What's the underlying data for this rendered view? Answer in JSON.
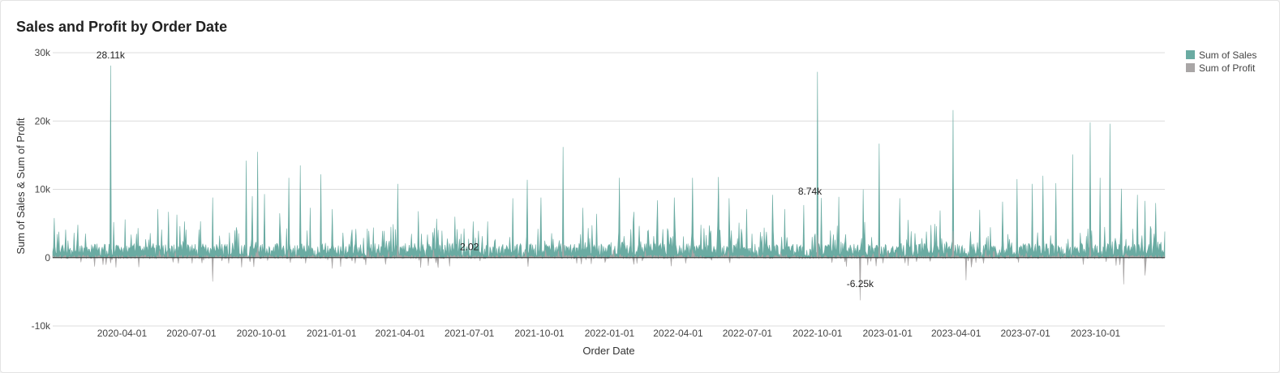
{
  "chart_data": {
    "type": "area",
    "title": "Sales and Profit by Order Date",
    "xlabel": "Order Date",
    "ylabel": "Sum of Sales & Sum of Profit",
    "ylim": [
      -10000,
      30000
    ],
    "xlim": [
      "2020-01-01",
      "2023-12-31"
    ],
    "grid": true,
    "legend_position": "top-right",
    "y_ticks": [
      {
        "value": -10000,
        "label": "-10k"
      },
      {
        "value": 0,
        "label": "0"
      },
      {
        "value": 10000,
        "label": "10k"
      },
      {
        "value": 20000,
        "label": "20k"
      },
      {
        "value": 30000,
        "label": "30k"
      }
    ],
    "x_ticks": [
      "2020-04-01",
      "2020-07-01",
      "2020-10-01",
      "2021-01-01",
      "2021-04-01",
      "2021-07-01",
      "2021-10-01",
      "2022-01-01",
      "2022-04-01",
      "2022-07-01",
      "2022-10-01",
      "2023-01-01",
      "2023-04-01",
      "2023-07-01",
      "2023-10-01"
    ],
    "series": [
      {
        "name": "Sum of Sales",
        "color": "#6aaba2",
        "peaks": [
          [
            "2020-01-03",
            5800
          ],
          [
            "2020-01-09",
            3800
          ],
          [
            "2020-01-18",
            4100
          ],
          [
            "2020-02-02",
            2600
          ],
          [
            "2020-02-21",
            1900
          ],
          [
            "2020-03-17",
            28110
          ],
          [
            "2020-03-21",
            5200
          ],
          [
            "2020-04-05",
            5600
          ],
          [
            "2020-05-02",
            2700
          ],
          [
            "2020-05-18",
            7100
          ],
          [
            "2020-06-01",
            6700
          ],
          [
            "2020-06-12",
            6300
          ],
          [
            "2020-06-22",
            5300
          ],
          [
            "2020-07-29",
            8800
          ],
          [
            "2020-09-11",
            14200
          ],
          [
            "2020-09-19",
            9000
          ],
          [
            "2020-09-26",
            15500
          ],
          [
            "2020-10-05",
            9300
          ],
          [
            "2020-10-25",
            6500
          ],
          [
            "2020-11-06",
            11700
          ],
          [
            "2020-11-21",
            13500
          ],
          [
            "2020-12-04",
            7300
          ],
          [
            "2020-12-18",
            12200
          ],
          [
            "2021-01-02",
            7100
          ],
          [
            "2021-02-02",
            4200
          ],
          [
            "2021-03-29",
            10800
          ],
          [
            "2021-04-25",
            6800
          ],
          [
            "2021-05-19",
            5700
          ],
          [
            "2021-06-12",
            6000
          ],
          [
            "2021-07-06",
            5300
          ],
          [
            "2021-08-27",
            8700
          ],
          [
            "2021-09-15",
            11400
          ],
          [
            "2021-10-03",
            8800
          ],
          [
            "2021-11-01",
            16200
          ],
          [
            "2021-11-27",
            7300
          ],
          [
            "2021-12-15",
            6400
          ],
          [
            "2022-01-14",
            11700
          ],
          [
            "2022-02-02",
            6700
          ],
          [
            "2022-03-05",
            8400
          ],
          [
            "2022-03-27",
            8800
          ],
          [
            "2022-04-20",
            11700
          ],
          [
            "2022-05-24",
            11800
          ],
          [
            "2022-06-07",
            8700
          ],
          [
            "2022-06-30",
            7100
          ],
          [
            "2022-08-03",
            9200
          ],
          [
            "2022-08-19",
            7100
          ],
          [
            "2022-09-13",
            7700
          ],
          [
            "2022-10-01",
            27200
          ],
          [
            "2022-10-06",
            8740
          ],
          [
            "2022-10-29",
            8900
          ],
          [
            "2022-11-30",
            10000
          ],
          [
            "2022-12-21",
            16700
          ],
          [
            "2023-01-17",
            8700
          ],
          [
            "2023-03-11",
            6900
          ],
          [
            "2023-03-28",
            21600
          ],
          [
            "2023-05-02",
            7000
          ],
          [
            "2023-06-01",
            8200
          ],
          [
            "2023-06-20",
            11500
          ],
          [
            "2023-07-10",
            10800
          ],
          [
            "2023-07-24",
            12000
          ],
          [
            "2023-08-10",
            10900
          ],
          [
            "2023-09-01",
            15100
          ],
          [
            "2023-09-24",
            19800
          ],
          [
            "2023-10-07",
            11700
          ],
          [
            "2023-10-20",
            19600
          ],
          [
            "2023-11-04",
            10100
          ],
          [
            "2023-11-25",
            9200
          ],
          [
            "2023-12-05",
            8300
          ],
          [
            "2023-12-19",
            8000
          ]
        ]
      },
      {
        "name": "Sum of Profit",
        "color": "#a9a6a6",
        "peaks": [
          [
            "2020-03-17",
            -800
          ],
          [
            "2020-07-29",
            -3500
          ],
          [
            "2020-09-26",
            1500
          ],
          [
            "2021-01-02",
            -1600
          ],
          [
            "2021-03-29",
            1800
          ],
          [
            "2021-07-01",
            2.02
          ],
          [
            "2021-11-01",
            2000
          ],
          [
            "2022-02-02",
            -1000
          ],
          [
            "2022-04-20",
            1200
          ],
          [
            "2022-10-01",
            3300
          ],
          [
            "2022-11-26",
            -6250
          ],
          [
            "2022-12-21",
            1800
          ],
          [
            "2023-03-28",
            3900
          ],
          [
            "2023-04-14",
            -3300
          ],
          [
            "2023-09-24",
            2800
          ],
          [
            "2023-11-07",
            -3900
          ],
          [
            "2023-12-05",
            -2600
          ]
        ]
      }
    ],
    "annotations": [
      {
        "date": "2020-03-17",
        "value": 28110,
        "label": "28.11k",
        "series": "Sum of Sales"
      },
      {
        "date": "2022-10-06",
        "value": 8740,
        "label": "8.74k",
        "series": "Sum of Sales"
      },
      {
        "date": "2021-07-01",
        "value": 2.02,
        "label": "2.02",
        "series": "Sum of Profit"
      },
      {
        "date": "2022-11-26",
        "value": -6250,
        "label": "-6.25k",
        "series": "Sum of Profit"
      }
    ]
  }
}
